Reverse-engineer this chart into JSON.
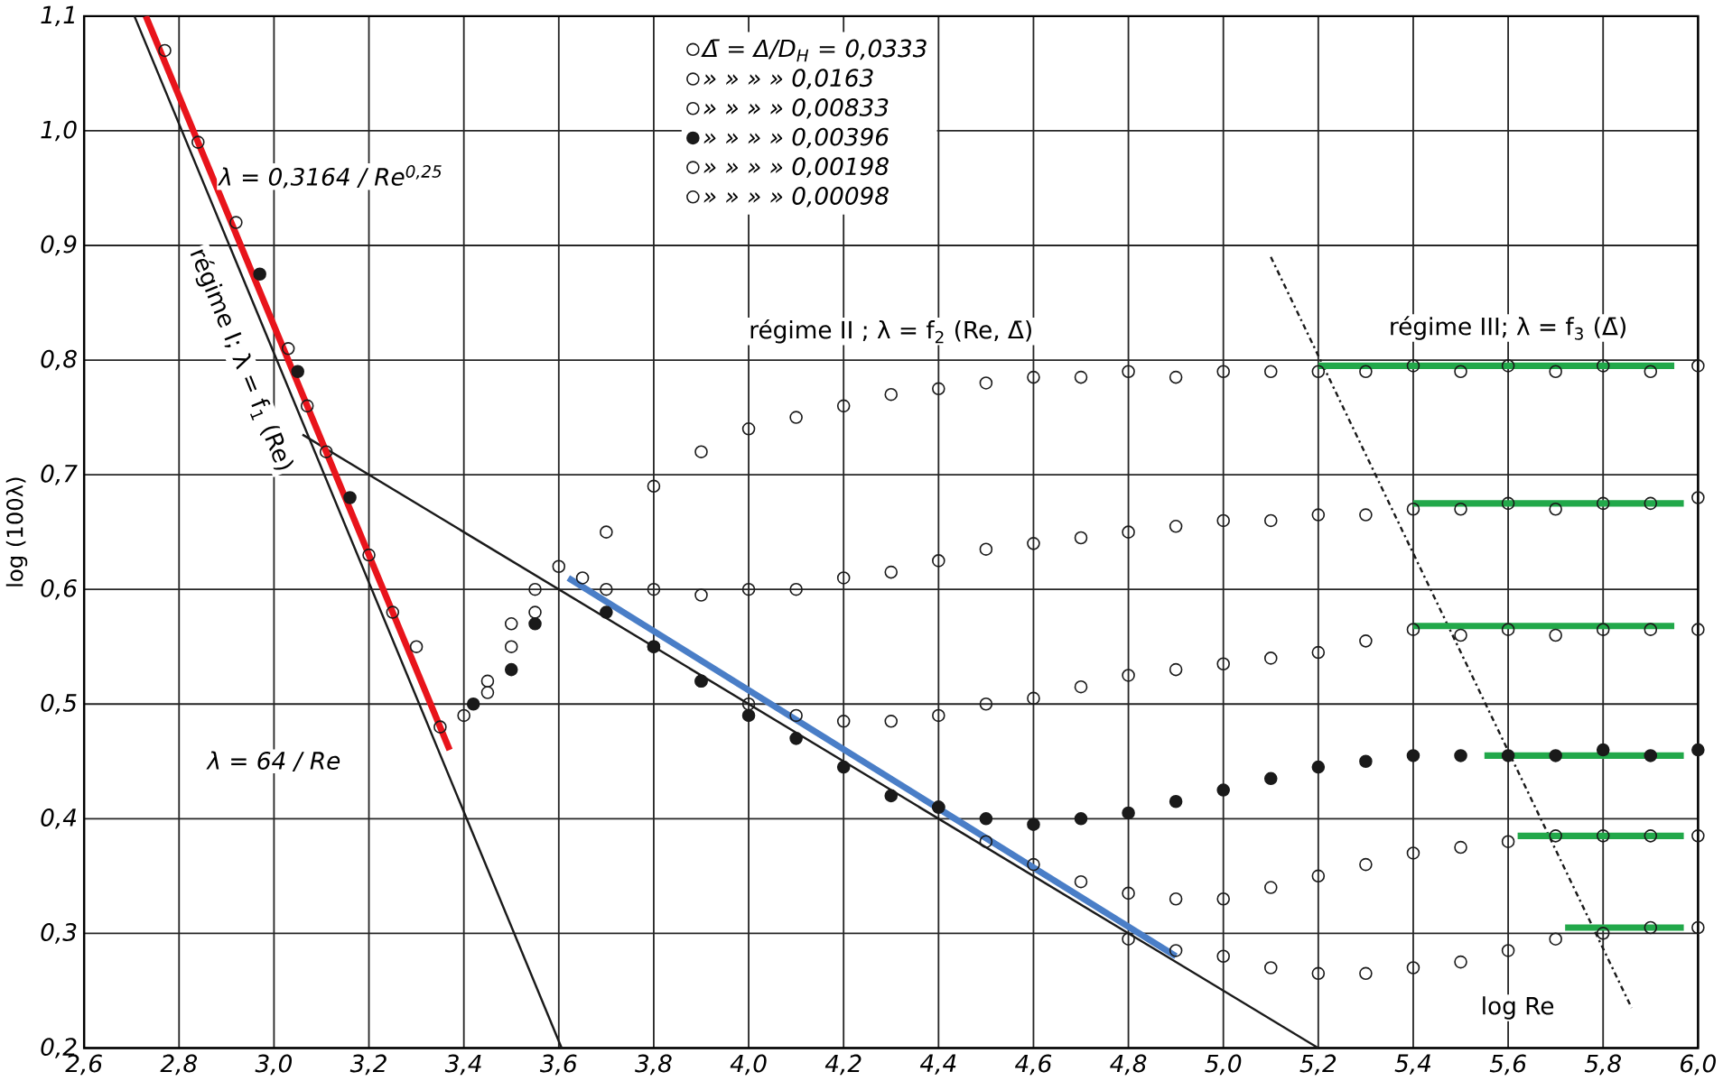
{
  "chart_data": {
    "type": "scatter",
    "ylabel": "log (100λ)",
    "xlim": [
      2.6,
      6.0
    ],
    "ylim": [
      0.2,
      1.1
    ],
    "xticks": [
      {
        "value": 2.6,
        "label": "2,6"
      },
      {
        "value": 2.8,
        "label": "2,8"
      },
      {
        "value": 3.0,
        "label": "3,0"
      },
      {
        "value": 3.2,
        "label": "3,2"
      },
      {
        "value": 3.4,
        "label": "3,4"
      },
      {
        "value": 3.6,
        "label": "3,6"
      },
      {
        "value": 3.8,
        "label": "3,8"
      },
      {
        "value": 4.0,
        "label": "4,0"
      },
      {
        "value": 4.2,
        "label": "4,2"
      },
      {
        "value": 4.4,
        "label": "4,4"
      },
      {
        "value": 4.6,
        "label": "4,6"
      },
      {
        "value": 4.8,
        "label": "4,8"
      },
      {
        "value": 5.0,
        "label": "5,0"
      },
      {
        "value": 5.2,
        "label": "5,2"
      },
      {
        "value": 5.4,
        "label": "5,4"
      },
      {
        "value": 5.6,
        "label": "5,6"
      },
      {
        "value": 5.8,
        "label": "5,8"
      },
      {
        "value": 6.0,
        "label": "6,0"
      }
    ],
    "yticks": [
      {
        "value": 0.2,
        "label": "0,2"
      },
      {
        "value": 0.3,
        "label": "0,3"
      },
      {
        "value": 0.4,
        "label": "0,4"
      },
      {
        "value": 0.5,
        "label": "0,5"
      },
      {
        "value": 0.6,
        "label": "0,6"
      },
      {
        "value": 0.7,
        "label": "0,7"
      },
      {
        "value": 0.8,
        "label": "0,8"
      },
      {
        "value": 0.9,
        "label": "0,9"
      },
      {
        "value": 1.0,
        "label": "1,0"
      },
      {
        "value": 1.1,
        "label": "1,1"
      }
    ],
    "grid": true,
    "legend": "top",
    "marker": "circle",
    "annotations": [
      "λ = 0,3164 / Re$^{0,25}$",
      "régime I; λ = f$_{1}$ (Re)",
      "λ = 64 / Re",
      "régime II ; λ = f$_{2}$ (Re, Δ̄)",
      "régime III; λ = f$_{3}$ (Δ̄)",
      "log Re"
    ],
    "series": [
      {
        "name": "Δ̄ = Δ/D$_{H}$ = 0,0333",
        "color": "#1a1a1a",
        "x": [
          3.45,
          3.5,
          3.55,
          3.6,
          3.7,
          3.8,
          3.9,
          4.0,
          4.1,
          4.2,
          4.3,
          4.4,
          4.5,
          4.6,
          4.7,
          4.8,
          4.9,
          5.0,
          5.1,
          5.2,
          5.3,
          5.4,
          5.5,
          5.6,
          5.7,
          5.8,
          5.9,
          6.0
        ],
        "values": [
          0.52,
          0.57,
          0.6,
          0.62,
          0.65,
          0.69,
          0.72,
          0.74,
          0.75,
          0.76,
          0.77,
          0.775,
          0.78,
          0.785,
          0.785,
          0.79,
          0.785,
          0.79,
          0.79,
          0.79,
          0.79,
          0.795,
          0.79,
          0.795,
          0.79,
          0.795,
          0.79,
          0.795
        ]
      },
      {
        "name": "» » » » 0,0163",
        "color": "#1a1a1a",
        "x": [
          3.65,
          3.7,
          3.8,
          3.9,
          4.0,
          4.1,
          4.2,
          4.3,
          4.4,
          4.5,
          4.6,
          4.7,
          4.8,
          4.9,
          5.0,
          5.1,
          5.2,
          5.3,
          5.4,
          5.5,
          5.6,
          5.7,
          5.8,
          5.9,
          6.0
        ],
        "values": [
          0.61,
          0.6,
          0.6,
          0.595,
          0.6,
          0.6,
          0.61,
          0.615,
          0.625,
          0.635,
          0.64,
          0.645,
          0.65,
          0.655,
          0.66,
          0.66,
          0.665,
          0.665,
          0.67,
          0.67,
          0.675,
          0.67,
          0.675,
          0.675,
          0.68
        ]
      },
      {
        "name": "» » » » 0,00833",
        "color": "#1a1a1a",
        "x": [
          2.77,
          2.84,
          2.92,
          3.03,
          3.07,
          3.11,
          3.2,
          3.25,
          3.3,
          3.35,
          3.4,
          3.45,
          3.5,
          3.55,
          3.8,
          3.9,
          4.0,
          4.1,
          4.2,
          4.3,
          4.4,
          4.5,
          4.6,
          4.7,
          4.8,
          4.9,
          5.0,
          5.1,
          5.2,
          5.3,
          5.4,
          5.5,
          5.6,
          5.7,
          5.8,
          5.9,
          6.0
        ],
        "values": [
          1.07,
          0.99,
          0.92,
          0.81,
          0.76,
          0.72,
          0.63,
          0.58,
          0.55,
          0.48,
          0.49,
          0.51,
          0.55,
          0.58,
          0.55,
          0.52,
          0.5,
          0.49,
          0.485,
          0.485,
          0.49,
          0.5,
          0.505,
          0.515,
          0.525,
          0.53,
          0.535,
          0.54,
          0.545,
          0.555,
          0.565,
          0.56,
          0.565,
          0.56,
          0.565,
          0.565,
          0.565
        ]
      },
      {
        "name": "» » » » 0,00396",
        "color": "#1a1a1a",
        "x": [
          2.97,
          3.05,
          3.16,
          3.42,
          3.5,
          3.55,
          3.7,
          3.8,
          3.9,
          4.0,
          4.1,
          4.2,
          4.3,
          4.4,
          4.5,
          4.6,
          4.7,
          4.8,
          4.9,
          5.0,
          5.1,
          5.2,
          5.3,
          5.4,
          5.5,
          5.6,
          5.7,
          5.8,
          5.9,
          6.0
        ],
        "values": [
          0.875,
          0.79,
          0.68,
          0.5,
          0.53,
          0.57,
          0.58,
          0.55,
          0.52,
          0.49,
          0.47,
          0.445,
          0.42,
          0.41,
          0.4,
          0.395,
          0.4,
          0.405,
          0.415,
          0.425,
          0.435,
          0.445,
          0.45,
          0.455,
          0.455,
          0.455,
          0.455,
          0.46,
          0.455,
          0.46
        ]
      },
      {
        "name": "» » » » 0,00198",
        "color": "#1a1a1a",
        "x": [
          4.4,
          4.5,
          4.6,
          4.7,
          4.8,
          4.9,
          5.0,
          5.1,
          5.2,
          5.3,
          5.4,
          5.5,
          5.6,
          5.7,
          5.8,
          5.9,
          6.0
        ],
        "values": [
          0.41,
          0.38,
          0.36,
          0.345,
          0.335,
          0.33,
          0.33,
          0.34,
          0.35,
          0.36,
          0.37,
          0.375,
          0.38,
          0.385,
          0.385,
          0.385,
          0.385
        ]
      },
      {
        "name": "» » » » 0,00098",
        "color": "#1a1a1a",
        "x": [
          4.8,
          4.9,
          5.0,
          5.1,
          5.2,
          5.3,
          5.4,
          5.5,
          5.6,
          5.7,
          5.8,
          5.9,
          6.0
        ],
        "values": [
          0.295,
          0.285,
          0.28,
          0.27,
          0.265,
          0.265,
          0.27,
          0.275,
          0.285,
          0.295,
          0.3,
          0.305,
          0.305
        ]
      },
      {
        "color": "#1a1a1a",
        "type": "line",
        "marker": "none",
        "line_style": "solid",
        "x": [
          2.706,
          3.606
        ],
        "values": [
          1.1,
          0.2
        ]
      },
      {
        "color": "#1a1a1a",
        "type": "line",
        "marker": "none",
        "line_style": "solid",
        "x": [
          3.06,
          5.2
        ],
        "values": [
          0.735,
          0.2
        ]
      },
      {
        "color": "#1a1a1a",
        "type": "line",
        "marker": "none",
        "line_style": "dashed",
        "x": [
          5.1,
          5.86
        ],
        "values": [
          0.89,
          0.235
        ]
      },
      {
        "color": "#e8141b",
        "type": "line",
        "marker": "none",
        "line_style": "solid",
        "x": [
          2.73,
          3.37
        ],
        "values": [
          1.1,
          0.46
        ]
      },
      {
        "color": "#4a7ec7",
        "type": "line",
        "marker": "none",
        "line_style": "solid",
        "x": [
          3.62,
          4.9
        ],
        "values": [
          0.61,
          0.28
        ]
      },
      {
        "color": "#22a84a",
        "type": "line",
        "marker": "none",
        "line_style": "solid",
        "x": [
          5.2,
          5.95
        ],
        "values": [
          0.795,
          0.795
        ]
      },
      {
        "color": "#22a84a",
        "type": "line",
        "marker": "none",
        "line_style": "solid",
        "x": [
          5.4,
          5.97
        ],
        "values": [
          0.675,
          0.675
        ]
      },
      {
        "color": "#22a84a",
        "type": "line",
        "marker": "none",
        "line_style": "solid",
        "x": [
          5.4,
          5.95
        ],
        "values": [
          0.568,
          0.568
        ]
      },
      {
        "color": "#22a84a",
        "type": "line",
        "marker": "none",
        "line_style": "solid",
        "x": [
          5.55,
          5.97
        ],
        "values": [
          0.455,
          0.455
        ]
      },
      {
        "color": "#22a84a",
        "type": "line",
        "marker": "none",
        "line_style": "solid",
        "x": [
          5.62,
          5.97
        ],
        "values": [
          0.385,
          0.385
        ]
      },
      {
        "color": "#22a84a",
        "type": "line",
        "marker": "none",
        "line_style": "solid",
        "x": [
          5.72,
          5.97
        ],
        "values": [
          0.305,
          0.305
        ]
      }
    ]
  }
}
